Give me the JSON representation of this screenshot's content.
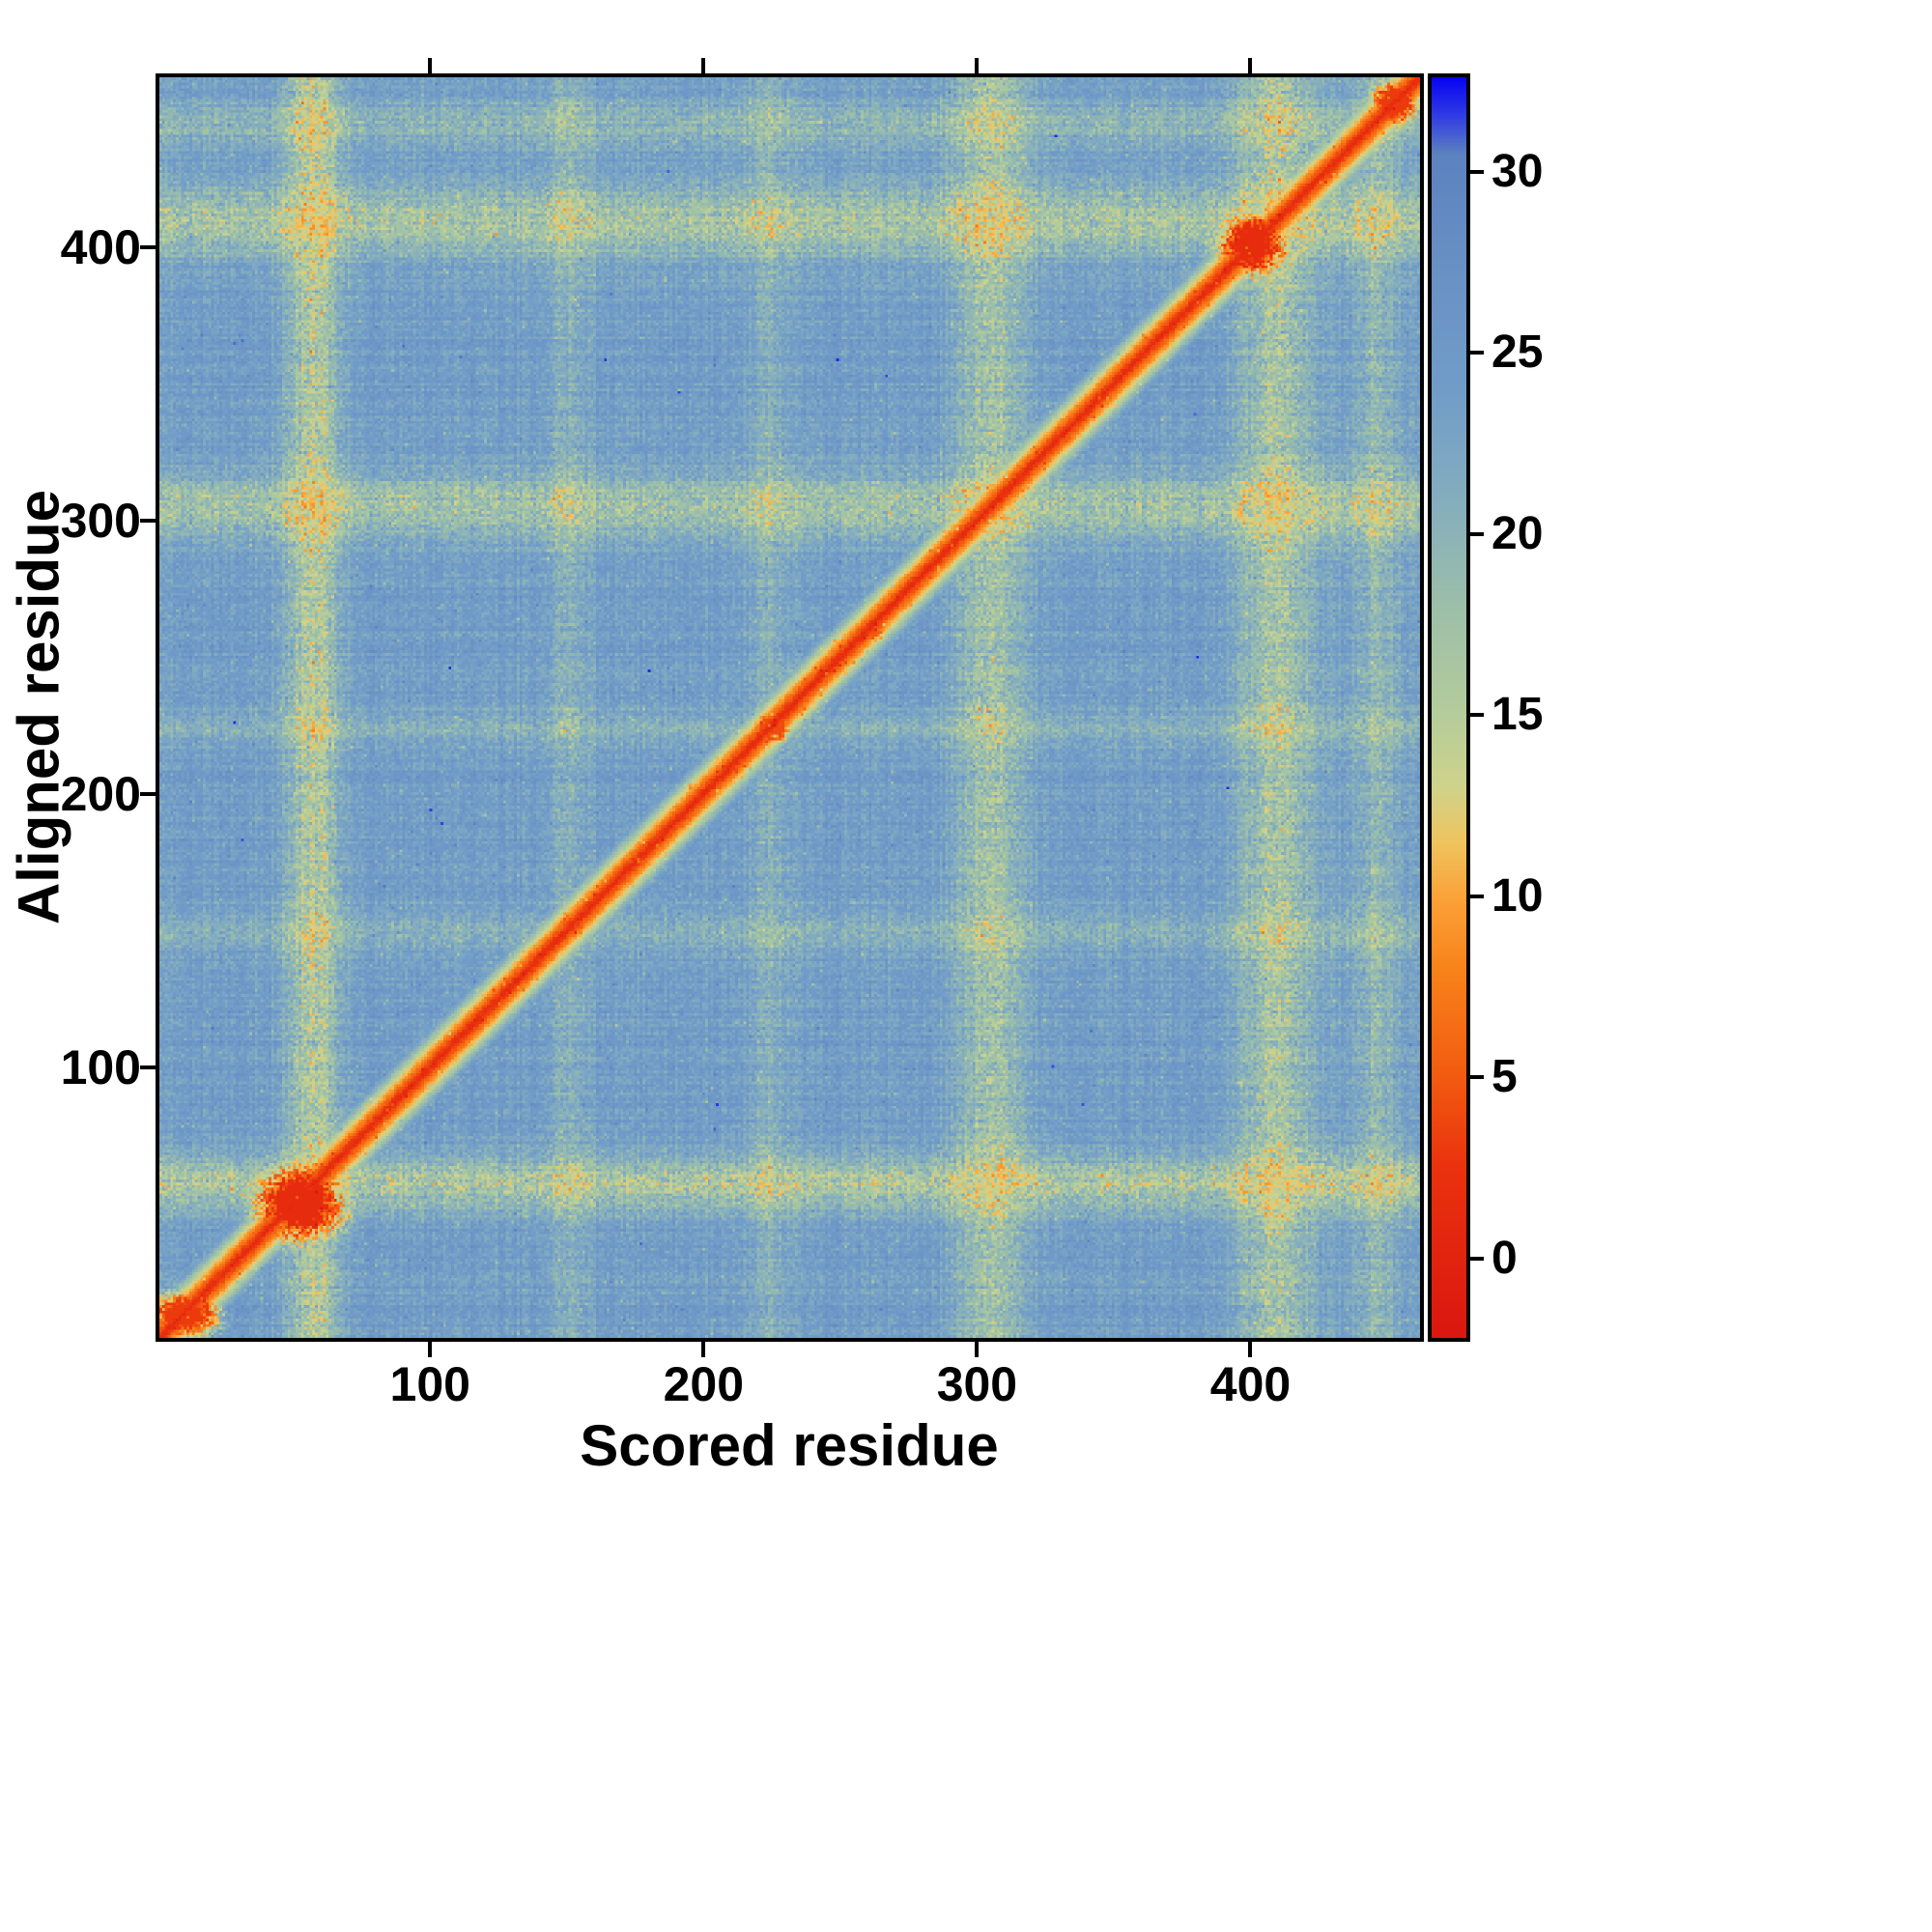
{
  "chart_data": {
    "type": "heatmap",
    "title": "",
    "xlabel": "Scored residue",
    "ylabel": "Aligned residue",
    "x_range": [
      1,
      462
    ],
    "y_range": [
      1,
      462
    ],
    "x_ticks": [
      100,
      200,
      300,
      400
    ],
    "y_ticks": [
      100,
      200,
      300,
      400
    ],
    "grid": false,
    "colorbar": {
      "position": "right",
      "ticks": [
        0,
        5,
        10,
        15,
        20,
        25,
        30
      ],
      "vmin": -2.2,
      "vmax": 32.6
    },
    "colormap": [
      {
        "v": -2.2,
        "c": "#da1710"
      },
      {
        "v": 2.5,
        "c": "#ea320e"
      },
      {
        "v": 5.0,
        "c": "#f25b10"
      },
      {
        "v": 8.0,
        "c": "#f8831a"
      },
      {
        "v": 10.0,
        "c": "#fba43a"
      },
      {
        "v": 11.5,
        "c": "#efc45f"
      },
      {
        "v": 13.0,
        "c": "#cfd38b"
      },
      {
        "v": 15.0,
        "c": "#b5cc9b"
      },
      {
        "v": 18.0,
        "c": "#9cbfa9"
      },
      {
        "v": 21.0,
        "c": "#84adbf"
      },
      {
        "v": 24.0,
        "c": "#719cc8"
      },
      {
        "v": 27.0,
        "c": "#6a92c4"
      },
      {
        "v": 30.5,
        "c": "#5c82c0"
      },
      {
        "v": 31.6,
        "c": "#2f3ae4"
      },
      {
        "v": 32.6,
        "c": "#0806f2"
      }
    ],
    "matrix_model": {
      "description": "Pairwise aligned-error matrix: low (red) values on the main diagonal, red blobs near residues 50 and 400, pale yellow-green row/column streaks, steel-blue high-error background",
      "background_value": 24.2,
      "noise": {
        "cell": 2.2,
        "column": 1.2,
        "row": 1.2,
        "speckle_chance": 0.007,
        "speckle_boost": 4,
        "light_speckle_chance": 0.012,
        "light_speckle_drop": 3.5,
        "extreme_chance": 2e-05,
        "streak_dip_cap": 12
      },
      "diagonal": {
        "min_value": 0.3,
        "half_width": 16,
        "exponent": 1.15,
        "range": 27
      },
      "blobs": [
        {
          "x": 10,
          "y": 9,
          "rx": 13,
          "ry": 9,
          "value": 3
        },
        {
          "x": 52,
          "y": 50,
          "rx": 17,
          "ry": 15,
          "value": 1.2
        },
        {
          "x": 401,
          "y": 401,
          "rx": 13,
          "ry": 12,
          "value": 1.5
        },
        {
          "x": 453,
          "y": 453,
          "rx": 9,
          "ry": 9,
          "value": 3
        },
        {
          "x": 152,
          "y": 152,
          "rx": 5,
          "ry": 5,
          "value": 4.5
        },
        {
          "x": 225,
          "y": 224,
          "rx": 7,
          "ry": 6,
          "value": 4
        },
        {
          "x": 262,
          "y": 260,
          "rx": 5,
          "ry": 5,
          "value": 5
        },
        {
          "x": 332,
          "y": 332,
          "rx": 5,
          "ry": 5,
          "value": 5
        }
      ],
      "streaks": [
        {
          "pos": 57,
          "width": 7,
          "depth": 8
        },
        {
          "pos": 150,
          "width": 6,
          "depth": 3.5
        },
        {
          "pos": 225,
          "width": 6,
          "depth": 3
        },
        {
          "pos": 305,
          "width": 9,
          "depth": 6.5
        },
        {
          "pos": 410,
          "width": 10,
          "depth": 7
        },
        {
          "pos": 446,
          "width": 6,
          "depth": 4.5
        }
      ]
    }
  }
}
